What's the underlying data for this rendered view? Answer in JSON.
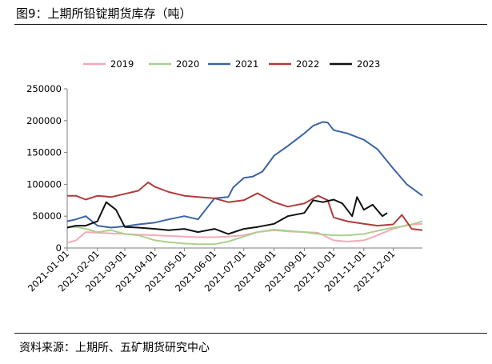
{
  "figure": {
    "title": "图9：上期所铅锭期货库存（吨）",
    "source": "资料来源：上期所、五矿期货研究中心"
  },
  "chart_data": {
    "type": "line",
    "title": "",
    "xlabel": "",
    "ylabel": "",
    "ylim": [
      0,
      250000
    ],
    "yticks": [
      "0",
      "50000",
      "100000",
      "150000",
      "200000",
      "250000"
    ],
    "xticks": [
      "2021-01-01",
      "2021-02-01",
      "2021-03-01",
      "2021-04-01",
      "2021-05-01",
      "2021-06-01",
      "2021-07-01",
      "2021-08-01",
      "2021-09-01",
      "2021-10-01",
      "2021-11-01",
      "2021-12-01"
    ],
    "legend_position": "top",
    "grid": false,
    "series": [
      {
        "name": "2019",
        "color": "#f4a9b8",
        "x": [
          "01-01",
          "01-10",
          "01-20",
          "02-01",
          "02-15",
          "03-01",
          "03-15",
          "04-01",
          "04-15",
          "05-01",
          "05-15",
          "06-01",
          "06-15",
          "07-01",
          "07-15",
          "08-01",
          "08-15",
          "09-01",
          "09-15",
          "10-01",
          "10-15",
          "11-01",
          "11-15",
          "12-01",
          "12-15",
          "12-31"
        ],
        "values": [
          8000,
          12000,
          25000,
          24000,
          23000,
          22000,
          21000,
          20000,
          19000,
          18000,
          17000,
          17000,
          18000,
          20000,
          25000,
          28000,
          26000,
          25000,
          24000,
          12000,
          10000,
          12000,
          20000,
          30000,
          36000,
          38000
        ]
      },
      {
        "name": "2020",
        "color": "#a9d18e",
        "x": [
          "01-01",
          "01-10",
          "01-20",
          "02-01",
          "02-15",
          "03-01",
          "03-15",
          "04-01",
          "04-15",
          "05-01",
          "05-15",
          "06-01",
          "06-15",
          "07-01",
          "07-15",
          "08-01",
          "08-15",
          "09-01",
          "09-15",
          "10-01",
          "10-15",
          "11-01",
          "11-15",
          "12-01",
          "12-15",
          "12-31"
        ],
        "values": [
          33000,
          33000,
          30000,
          25000,
          28000,
          22000,
          20000,
          12000,
          9000,
          7000,
          6000,
          6000,
          10000,
          18000,
          25000,
          29000,
          27000,
          25000,
          22000,
          20000,
          20000,
          22000,
          27000,
          32000,
          35000,
          42000
        ]
      },
      {
        "name": "2021",
        "color": "#3b64a4",
        "x": [
          "01-01",
          "01-10",
          "01-20",
          "02-01",
          "02-15",
          "03-01",
          "03-15",
          "04-01",
          "04-15",
          "05-01",
          "05-15",
          "06-01",
          "06-15",
          "06-20",
          "07-01",
          "07-10",
          "07-20",
          "08-01",
          "08-15",
          "09-01",
          "09-10",
          "09-20",
          "09-25",
          "10-01",
          "10-15",
          "11-01",
          "11-15",
          "12-01",
          "12-15",
          "12-31"
        ],
        "values": [
          42000,
          45000,
          50000,
          35000,
          32000,
          34000,
          37000,
          40000,
          45000,
          50000,
          45000,
          78000,
          80000,
          95000,
          110000,
          112000,
          120000,
          145000,
          160000,
          180000,
          192000,
          198000,
          197000,
          185000,
          180000,
          170000,
          155000,
          125000,
          100000,
          82000
        ]
      },
      {
        "name": "2022",
        "color": "#b23b3b",
        "x": [
          "01-01",
          "01-10",
          "01-20",
          "02-01",
          "02-15",
          "03-01",
          "03-15",
          "03-25",
          "04-01",
          "04-15",
          "05-01",
          "05-15",
          "06-01",
          "06-15",
          "07-01",
          "07-15",
          "08-01",
          "08-15",
          "09-01",
          "09-15",
          "09-25",
          "10-01",
          "10-15",
          "11-01",
          "11-15",
          "12-01",
          "12-10",
          "12-20",
          "12-31"
        ],
        "values": [
          82000,
          82000,
          76000,
          82000,
          80000,
          85000,
          90000,
          103000,
          96000,
          88000,
          82000,
          80000,
          78000,
          72000,
          75000,
          86000,
          72000,
          65000,
          70000,
          82000,
          75000,
          48000,
          42000,
          38000,
          35000,
          37000,
          52000,
          30000,
          28000
        ]
      },
      {
        "name": "2023",
        "color": "#111111",
        "x": [
          "01-01",
          "01-10",
          "01-20",
          "02-01",
          "02-10",
          "02-20",
          "03-01",
          "03-15",
          "04-01",
          "04-15",
          "05-01",
          "05-15",
          "06-01",
          "06-15",
          "07-01",
          "07-15",
          "08-01",
          "08-15",
          "09-01",
          "09-10",
          "09-20",
          "10-01",
          "10-10",
          "10-20",
          "10-25",
          "11-01",
          "11-10",
          "11-20",
          "11-25"
        ],
        "values": [
          32000,
          35000,
          35000,
          42000,
          72000,
          60000,
          33000,
          32000,
          30000,
          28000,
          30000,
          25000,
          30000,
          22000,
          30000,
          33000,
          38000,
          50000,
          55000,
          75000,
          72000,
          76000,
          70000,
          50000,
          80000,
          60000,
          68000,
          50000,
          55000
        ]
      }
    ]
  }
}
